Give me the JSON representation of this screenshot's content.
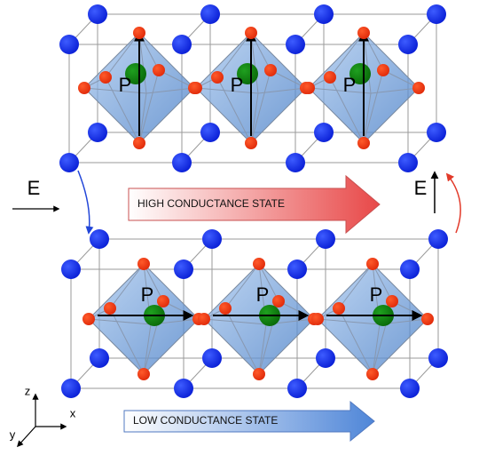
{
  "top_panel": {
    "polarization_labels": [
      "P",
      "P",
      "P"
    ],
    "state_label": "HIGH CONDUCTANCE STATE"
  },
  "bottom_panel": {
    "polarization_labels": [
      "P",
      "P",
      "P"
    ],
    "state_label": "LOW CONDUCTANCE STATE"
  },
  "field_labels": [
    "E",
    "E"
  ],
  "axes": {
    "z": "z",
    "x": "x",
    "y": "y"
  }
}
